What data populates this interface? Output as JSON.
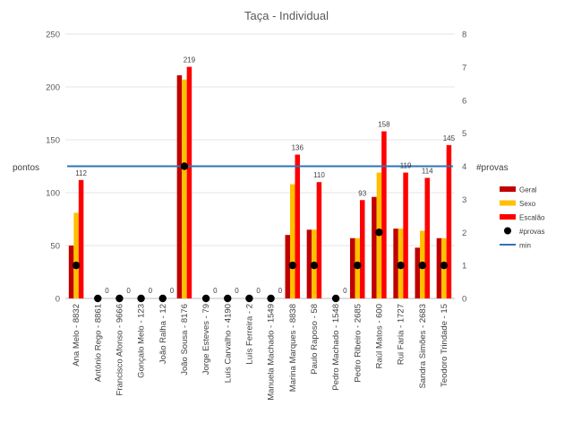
{
  "chart_data": {
    "type": "bar",
    "title": "Taça - Individual",
    "ylabel": "pontos",
    "y2label": "#provas",
    "ylim": [
      0,
      250
    ],
    "y2lim": [
      0,
      8
    ],
    "yticks": [
      "0",
      "50",
      "100",
      "150",
      "200",
      "250"
    ],
    "y2ticks": [
      "0",
      "1",
      "2",
      "3",
      "4",
      "5",
      "6",
      "7",
      "8"
    ],
    "grid": true,
    "categories": [
      "Ana Melo - 8832",
      "António Rego - 8861",
      "Francisco Afonso - 9666",
      "Gonçalo Melo - 123",
      "João Ralha - 12",
      "João Sousa - 8176",
      "Jorge Esteves - 79",
      "Luís Carvalho - 4190",
      "Luís Ferreira - 2",
      "Manuela Machado - 1549",
      "Marina Marques - 8838",
      "Paulo Raposo - 58",
      "Pedro Machado - 1548",
      "Pedro Ribeiro - 2685",
      "Raúl Matos - 600",
      "Rui Faria - 1727",
      "Sandra Simões - 2683",
      "Teodoro Trindade - 15"
    ],
    "series": [
      {
        "name": "Geral",
        "color": "#c00000",
        "values": [
          50,
          0,
          0,
          0,
          0,
          211,
          0,
          0,
          0,
          0,
          60,
          65,
          0,
          57,
          96,
          66,
          48,
          57
        ]
      },
      {
        "name": "Sexo",
        "color": "#ffc000",
        "values": [
          81,
          0,
          0,
          0,
          0,
          207,
          0,
          0,
          0,
          0,
          108,
          65,
          0,
          57,
          119,
          66,
          64,
          57
        ]
      },
      {
        "name": "Escalão",
        "color": "#ff0000",
        "values": [
          112,
          0,
          0,
          0,
          0,
          219,
          0,
          0,
          0,
          0,
          136,
          110,
          0,
          93,
          158,
          119,
          114,
          145
        ]
      }
    ],
    "data_labels": [
      "112",
      "0",
      "0",
      "0",
      "0",
      "219",
      "0",
      "0",
      "0",
      "0",
      "136",
      "110",
      "0",
      "93",
      "158",
      "119",
      "114",
      "145"
    ],
    "provas": {
      "name": "#provas",
      "color": "#000000",
      "values": [
        1,
        0,
        0,
        0,
        0,
        4,
        0,
        0,
        0,
        0,
        1,
        1,
        0,
        1,
        2,
        1,
        1,
        1
      ]
    },
    "min_line": {
      "name": "min",
      "color": "#2e75b6",
      "value": 4
    },
    "legend_position": "right"
  }
}
